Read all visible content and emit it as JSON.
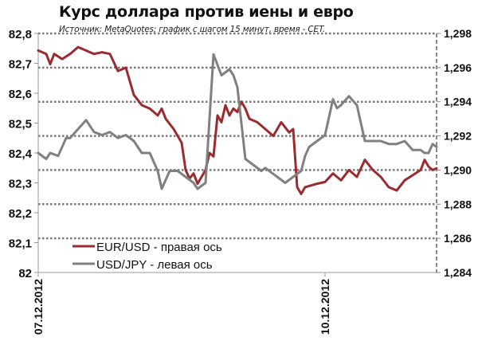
{
  "chart_data": {
    "type": "line",
    "title": "Курс доллара против иены и евро",
    "subtitle": "Источник: MetaQuotes; график с шагом 15 минут, время - CET.",
    "xlabel": "",
    "x_ticks": [
      "07.12.2012",
      "10.12.2012"
    ],
    "left_axis": {
      "label": "USD/JPY",
      "ticks": [
        "82,8",
        "82,7",
        "82,6",
        "82,5",
        "82,4",
        "82,3",
        "82,2",
        "82,1",
        "82"
      ],
      "ylim": [
        82.0,
        82.8
      ]
    },
    "right_axis": {
      "label": "EUR/USD",
      "ticks": [
        "1,298",
        "1,296",
        "1,294",
        "1,292",
        "1,290",
        "1,288",
        "1,286",
        "1,284"
      ],
      "ylim": [
        1.284,
        1.298
      ]
    },
    "grid": "dotted horizontal at right-axis ticks",
    "legend": {
      "position": "lower-left inside plot",
      "entries": [
        "EUR/USD - правая ось",
        "USD/JPY - левая ось"
      ]
    },
    "series": [
      {
        "name": "EUR/USD - правая ось",
        "axis": "right",
        "color": "#9b2b2e",
        "x_frac": [
          0.0,
          0.02,
          0.03,
          0.04,
          0.06,
          0.08,
          0.1,
          0.12,
          0.14,
          0.16,
          0.18,
          0.2,
          0.22,
          0.24,
          0.26,
          0.28,
          0.3,
          0.31,
          0.32,
          0.34,
          0.36,
          0.37,
          0.38,
          0.39,
          0.4,
          0.42,
          0.43,
          0.44,
          0.45,
          0.46,
          0.47,
          0.48,
          0.49,
          0.5,
          0.51,
          0.52,
          0.53,
          0.55,
          0.57,
          0.59,
          0.61,
          0.63,
          0.64,
          0.65,
          0.66,
          0.67,
          0.7,
          0.72,
          0.74,
          0.76,
          0.78,
          0.8,
          0.82,
          0.84,
          0.86,
          0.88,
          0.9,
          0.92,
          0.94,
          0.96,
          0.97,
          0.98,
          0.99,
          1.0
        ],
        "values": [
          1.297,
          1.2968,
          1.2962,
          1.2968,
          1.2965,
          1.2968,
          1.2972,
          1.297,
          1.2968,
          1.2969,
          1.2968,
          1.2958,
          1.296,
          1.2944,
          1.2938,
          1.2936,
          1.2932,
          1.2936,
          1.293,
          1.2924,
          1.2916,
          1.29,
          1.2895,
          1.2898,
          1.2892,
          1.29,
          1.291,
          1.2908,
          1.2932,
          1.2928,
          1.2938,
          1.2932,
          1.2936,
          1.2934,
          1.294,
          1.2936,
          1.293,
          1.2928,
          1.2924,
          1.292,
          1.2928,
          1.2922,
          1.2924,
          1.289,
          1.2886,
          1.289,
          1.2892,
          1.2893,
          1.2898,
          1.2894,
          1.29,
          1.2896,
          1.2906,
          1.29,
          1.2896,
          1.289,
          1.2888,
          1.2894,
          1.2897,
          1.29,
          1.2906,
          1.2902,
          1.29,
          1.2901
        ]
      },
      {
        "name": "USD/JPY - левая ось",
        "axis": "left",
        "color": "#808080",
        "x_frac": [
          0.0,
          0.02,
          0.03,
          0.05,
          0.07,
          0.08,
          0.1,
          0.12,
          0.14,
          0.16,
          0.18,
          0.2,
          0.22,
          0.24,
          0.26,
          0.28,
          0.3,
          0.31,
          0.33,
          0.35,
          0.37,
          0.39,
          0.4,
          0.42,
          0.44,
          0.46,
          0.48,
          0.49,
          0.5,
          0.51,
          0.52,
          0.54,
          0.56,
          0.57,
          0.59,
          0.6,
          0.62,
          0.64,
          0.66,
          0.67,
          0.68,
          0.7,
          0.72,
          0.74,
          0.75,
          0.76,
          0.78,
          0.8,
          0.82,
          0.84,
          0.86,
          0.88,
          0.9,
          0.92,
          0.94,
          0.96,
          0.97,
          0.98,
          0.99,
          1.0
        ],
        "values": [
          82.4,
          82.38,
          82.4,
          82.39,
          82.45,
          82.45,
          82.48,
          82.51,
          82.47,
          82.46,
          82.47,
          82.45,
          82.46,
          82.44,
          82.4,
          82.4,
          82.34,
          82.28,
          82.34,
          82.34,
          82.32,
          82.3,
          82.28,
          82.3,
          82.73,
          82.66,
          82.68,
          82.66,
          82.62,
          82.5,
          82.38,
          82.36,
          82.34,
          82.35,
          82.33,
          82.32,
          82.3,
          82.32,
          82.34,
          82.39,
          82.42,
          82.44,
          82.46,
          82.58,
          82.55,
          82.56,
          82.59,
          82.56,
          82.44,
          82.44,
          82.44,
          82.43,
          82.43,
          82.44,
          82.41,
          82.41,
          82.4,
          82.4,
          82.43,
          82.42
        ]
      }
    ]
  }
}
